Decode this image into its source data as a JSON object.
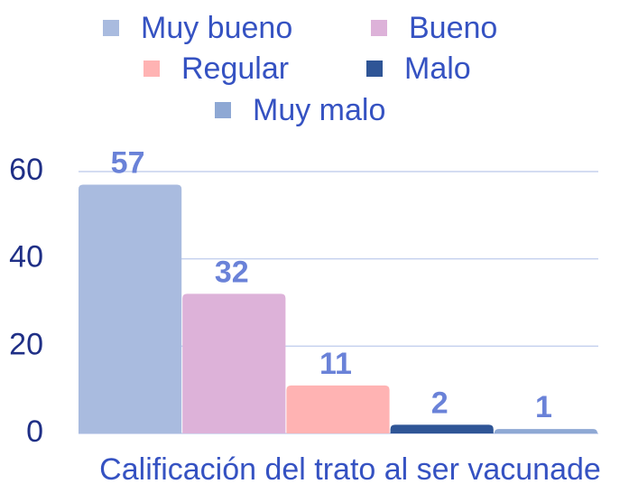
{
  "chart_data": {
    "type": "bar",
    "categories": [
      "Calificación del trato al ser vacunade"
    ],
    "series": [
      {
        "name": "Muy bueno",
        "color": "#a9bbdf",
        "values": [
          57
        ]
      },
      {
        "name": "Bueno",
        "color": "#ddb2d9",
        "values": [
          32
        ]
      },
      {
        "name": "Regular",
        "color": "#ffb3b3",
        "values": [
          11
        ]
      },
      {
        "name": "Malo",
        "color": "#2f5596",
        "values": [
          2
        ]
      },
      {
        "name": "Muy malo",
        "color": "#8ea8d4",
        "values": [
          1
        ]
      }
    ],
    "ylim": [
      0,
      60
    ],
    "yticks": [
      0,
      20,
      40,
      60
    ],
    "grid": true,
    "legend": "top"
  }
}
